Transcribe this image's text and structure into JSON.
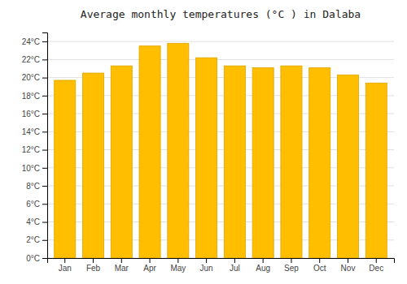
{
  "chart_data": {
    "type": "bar",
    "title": "Average monthly temperatures (°C ) in Dalaba",
    "categories": [
      "Jan",
      "Feb",
      "Mar",
      "Apr",
      "May",
      "Jun",
      "Jul",
      "Aug",
      "Sep",
      "Oct",
      "Nov",
      "Dec"
    ],
    "values": [
      19.7,
      20.5,
      21.3,
      23.5,
      23.8,
      22.2,
      21.3,
      21.1,
      21.3,
      21.1,
      20.3,
      19.4
    ],
    "color": "#FFBE00",
    "ylim": [
      0,
      25
    ],
    "yticks": [
      {
        "value": 0,
        "label": "0°C"
      },
      {
        "value": 2,
        "label": "2°C"
      },
      {
        "value": 4,
        "label": "4°C"
      },
      {
        "value": 6,
        "label": "6°C"
      },
      {
        "value": 8,
        "label": "8°C"
      },
      {
        "value": 10,
        "label": "10°C"
      },
      {
        "value": 12,
        "label": "12°C"
      },
      {
        "value": 14,
        "label": "14°C"
      },
      {
        "value": 16,
        "label": "16°C"
      },
      {
        "value": 18,
        "label": "18°C"
      },
      {
        "value": 20,
        "label": "20°C"
      },
      {
        "value": 22,
        "label": "22°C"
      },
      {
        "value": 24,
        "label": "24°C"
      }
    ],
    "grid": true
  }
}
